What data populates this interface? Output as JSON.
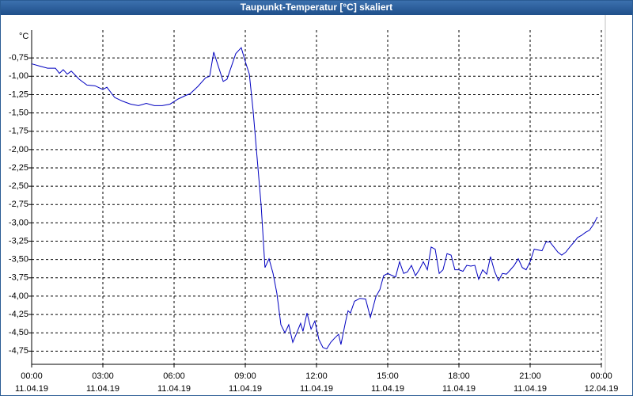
{
  "chart_data": {
    "type": "line",
    "title": "Taupunkt-Temperatur [°C] skaliert",
    "y_unit": "°C",
    "x": [
      0,
      0.33,
      0.67,
      1,
      1.17,
      1.33,
      1.5,
      1.67,
      2,
      2.33,
      2.67,
      3,
      3.17,
      3.5,
      3.83,
      4.17,
      4.5,
      4.83,
      5.17,
      5.5,
      5.83,
      6.17,
      6.5,
      6.67,
      7,
      7.33,
      7.5,
      7.67,
      7.83,
      8.07,
      8.23,
      8.4,
      8.6,
      8.83,
      9,
      9.17,
      9.33,
      9.5,
      9.67,
      9.83,
      10,
      10.17,
      10.33,
      10.5,
      10.67,
      10.83,
      11,
      11.17,
      11.33,
      11.43,
      11.6,
      11.77,
      11.93,
      12.1,
      12.27,
      12.43,
      12.6,
      12.77,
      12.93,
      13.03,
      13.23,
      13.33,
      13.43,
      13.6,
      13.83,
      14.07,
      14.27,
      14.5,
      14.67,
      14.83,
      15,
      15.33,
      15.5,
      15.67,
      15.83,
      16,
      16.17,
      16.33,
      16.5,
      16.67,
      16.83,
      17,
      17.17,
      17.33,
      17.5,
      17.67,
      17.83,
      18,
      18.17,
      18.33,
      18.5,
      18.67,
      18.83,
      19,
      19.17,
      19.33,
      19.5,
      19.67,
      19.83,
      20,
      20.17,
      20.33,
      20.5,
      20.67,
      20.83,
      21,
      21.17,
      21.33,
      21.5,
      21.67,
      21.83,
      22,
      22.17,
      22.33,
      22.5,
      22.67,
      22.83,
      23,
      23.17,
      23.33,
      23.5,
      23.67,
      23.83
    ],
    "series": [
      {
        "name": "Taupunkt-Temperatur",
        "color": "#0000c0",
        "values": [
          -0.83,
          -0.86,
          -0.89,
          -0.89,
          -0.96,
          -0.91,
          -0.97,
          -0.93,
          -1.04,
          -1.12,
          -1.13,
          -1.18,
          -1.15,
          -1.29,
          -1.34,
          -1.38,
          -1.4,
          -1.37,
          -1.4,
          -1.4,
          -1.38,
          -1.31,
          -1.26,
          -1.24,
          -1.14,
          -1.02,
          -1.0,
          -0.67,
          -0.83,
          -1.07,
          -1.04,
          -0.88,
          -0.69,
          -0.61,
          -0.8,
          -0.97,
          -1.47,
          -2.12,
          -2.77,
          -3.61,
          -3.49,
          -3.69,
          -3.96,
          -4.39,
          -4.5,
          -4.39,
          -4.63,
          -4.5,
          -4.37,
          -4.48,
          -4.23,
          -4.45,
          -4.34,
          -4.59,
          -4.7,
          -4.72,
          -4.63,
          -4.57,
          -4.52,
          -4.66,
          -4.34,
          -4.2,
          -4.23,
          -4.07,
          -4.03,
          -4.04,
          -4.29,
          -4.01,
          -3.91,
          -3.72,
          -3.69,
          -3.74,
          -3.53,
          -3.69,
          -3.67,
          -3.58,
          -3.72,
          -3.64,
          -3.53,
          -3.64,
          -3.33,
          -3.36,
          -3.69,
          -3.64,
          -3.42,
          -3.44,
          -3.64,
          -3.64,
          -3.66,
          -3.58,
          -3.59,
          -3.58,
          -3.77,
          -3.64,
          -3.7,
          -3.46,
          -3.66,
          -3.79,
          -3.69,
          -3.7,
          -3.64,
          -3.58,
          -3.49,
          -3.61,
          -3.64,
          -3.53,
          -3.36,
          -3.37,
          -3.38,
          -3.26,
          -3.26,
          -3.33,
          -3.4,
          -3.44,
          -3.4,
          -3.33,
          -3.27,
          -3.2,
          -3.17,
          -3.13,
          -3.1,
          -3.02,
          -2.92
        ]
      }
    ],
    "xlim": [
      0,
      24
    ],
    "xticks": [
      {
        "value": 0,
        "label": "00:00"
      },
      {
        "value": 3,
        "label": "03:00"
      },
      {
        "value": 6,
        "label": "06:00"
      },
      {
        "value": 9,
        "label": "09:00"
      },
      {
        "value": 12,
        "label": "12:00"
      },
      {
        "value": 15,
        "label": "15:00"
      },
      {
        "value": 18,
        "label": "18:00"
      },
      {
        "value": 21,
        "label": "21:00"
      },
      {
        "value": 24,
        "label": "00:00"
      }
    ],
    "xtick_dates": [
      "11.04.19",
      "11.04.19",
      "11.04.19",
      "11.04.19",
      "11.04.19",
      "11.04.19",
      "11.04.19",
      "11.04.19",
      "12.04.19"
    ],
    "ylim": [
      -4.93,
      -0.37
    ],
    "yticks": [
      {
        "value": -0.75,
        "label": "-0,75"
      },
      {
        "value": -1,
        "label": "-1,00"
      },
      {
        "value": -1.25,
        "label": "-1,25"
      },
      {
        "value": -1.5,
        "label": "-1,50"
      },
      {
        "value": -1.75,
        "label": "-1,75"
      },
      {
        "value": -2,
        "label": "-2,00"
      },
      {
        "value": -2.25,
        "label": "-2,25"
      },
      {
        "value": -2.5,
        "label": "-2,50"
      },
      {
        "value": -2.75,
        "label": "-2,75"
      },
      {
        "value": -3,
        "label": "-3,00"
      },
      {
        "value": -3.25,
        "label": "-3,25"
      },
      {
        "value": -3.5,
        "label": "-3,50"
      },
      {
        "value": -3.75,
        "label": "-3,75"
      },
      {
        "value": -4,
        "label": "-4,00"
      },
      {
        "value": -4.25,
        "label": "-4,25"
      },
      {
        "value": -4.5,
        "label": "-4,50"
      },
      {
        "value": -4.75,
        "label": "-4,75"
      }
    ],
    "grid": true
  }
}
